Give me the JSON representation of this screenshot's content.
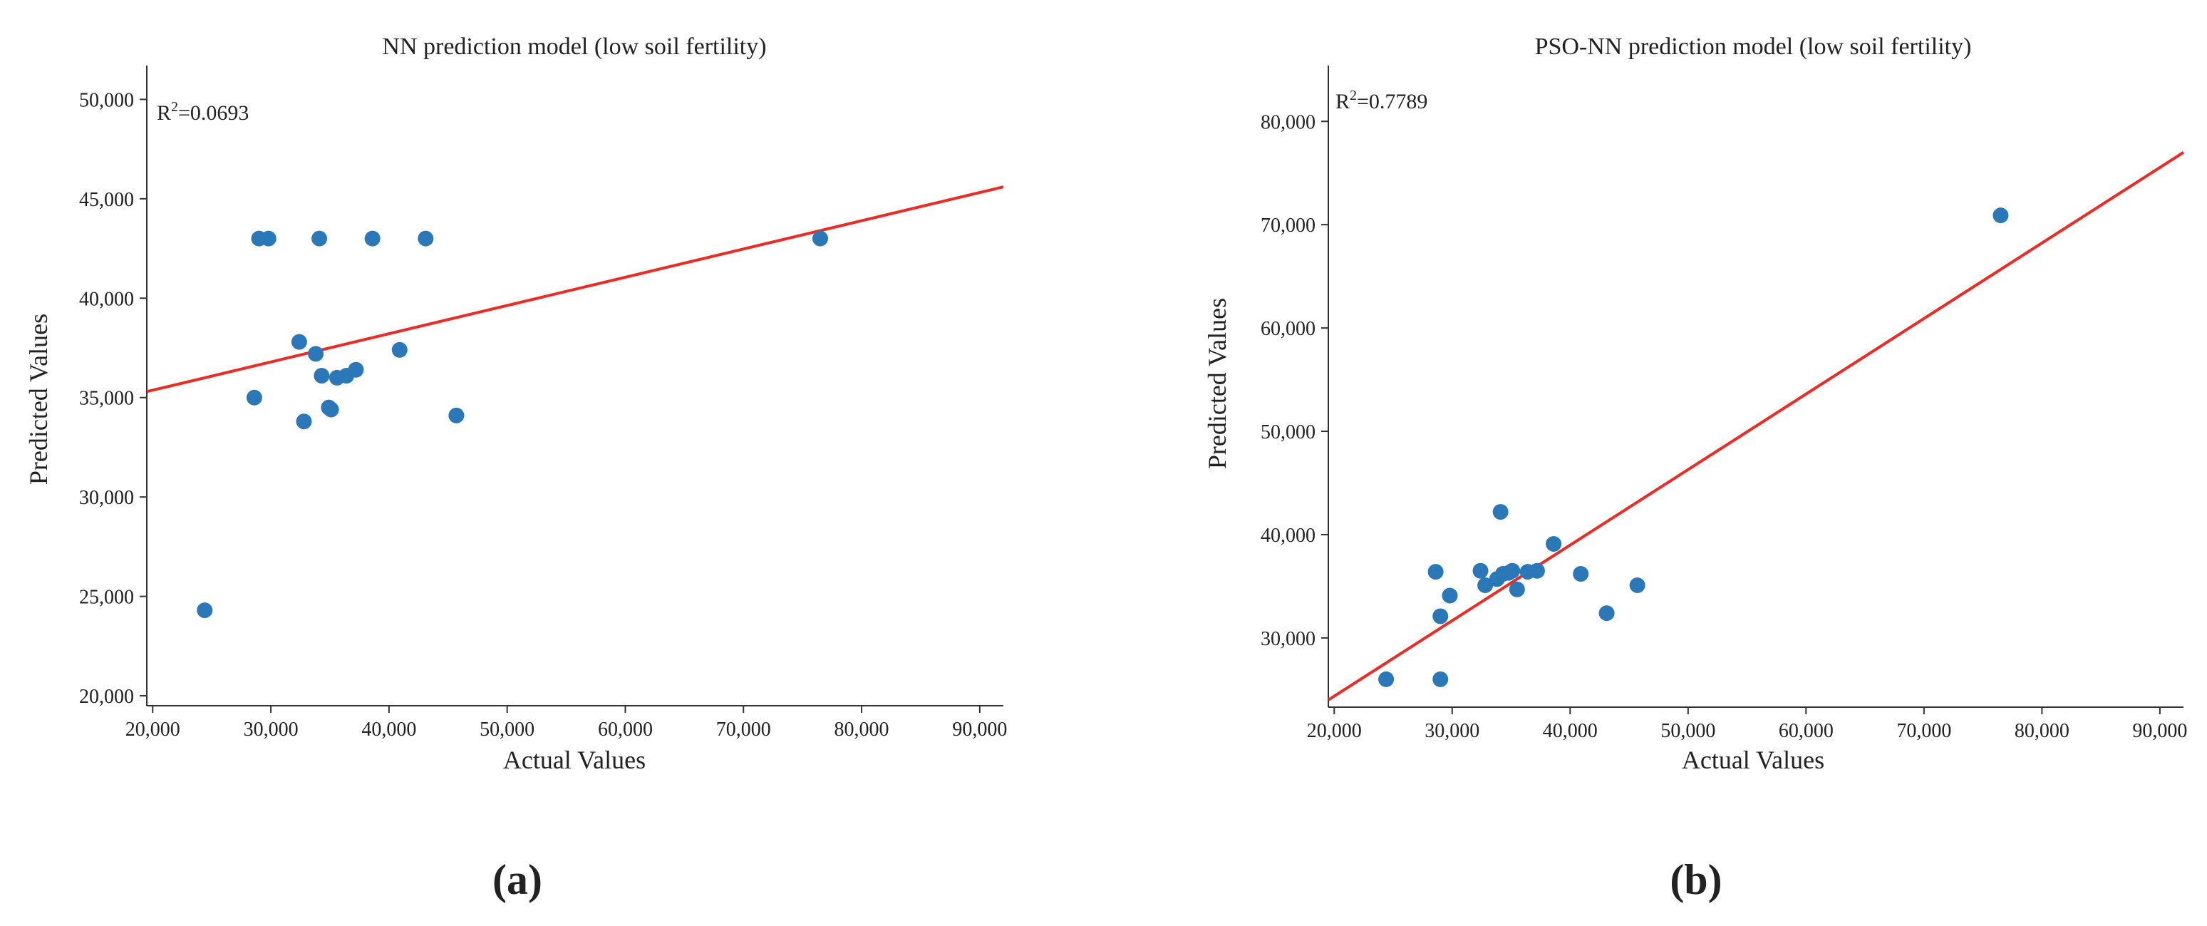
{
  "figure": {
    "panels": [
      {
        "label": "(a)",
        "chart_data": {
          "type": "scatter",
          "title": "NN prediction model (low soil fertility)",
          "xlabel": "Actual Values",
          "ylabel": "Predicted Values",
          "annotation": {
            "prefix": "R",
            "sup": "2",
            "value": "=0.0693"
          },
          "xlim": [
            19500,
            92000
          ],
          "ylim": [
            19500,
            51700
          ],
          "xticks": [
            20000,
            30000,
            40000,
            50000,
            60000,
            70000,
            80000,
            90000
          ],
          "xtick_labels": [
            "20,000",
            "30,000",
            "40,000",
            "50,000",
            "60,000",
            "70,000",
            "80,000",
            "90,000"
          ],
          "yticks": [
            20000,
            25000,
            30000,
            35000,
            40000,
            45000,
            50000
          ],
          "ytick_labels": [
            "20,000",
            "25,000",
            "30,000",
            "35,000",
            "40,000",
            "45,000",
            "50,000"
          ],
          "points": [
            {
              "x": 24400,
              "y": 24300
            },
            {
              "x": 28600,
              "y": 35000
            },
            {
              "x": 29000,
              "y": 43000
            },
            {
              "x": 29800,
              "y": 43000
            },
            {
              "x": 32400,
              "y": 37800
            },
            {
              "x": 32800,
              "y": 33800
            },
            {
              "x": 33800,
              "y": 37200
            },
            {
              "x": 34100,
              "y": 43000
            },
            {
              "x": 34300,
              "y": 36100
            },
            {
              "x": 34900,
              "y": 34500
            },
            {
              "x": 35100,
              "y": 34400
            },
            {
              "x": 35600,
              "y": 36000
            },
            {
              "x": 36400,
              "y": 36100
            },
            {
              "x": 37200,
              "y": 36400
            },
            {
              "x": 38600,
              "y": 43000
            },
            {
              "x": 40900,
              "y": 37400
            },
            {
              "x": 43100,
              "y": 43000
            },
            {
              "x": 45700,
              "y": 34100
            },
            {
              "x": 76500,
              "y": 43000
            }
          ],
          "fit_line": {
            "x": [
              19500,
              92000
            ],
            "y": [
              35300,
              45600
            ]
          },
          "point_color": "#2b78b8",
          "line_color": "#ee2a24"
        }
      },
      {
        "label": "(b)",
        "chart_data": {
          "type": "scatter",
          "title": "PSO-NN prediction model (low soil fertility)",
          "xlabel": "Actual Values",
          "ylabel": "Predicted Values",
          "annotation": {
            "prefix": "R",
            "sup": "2",
            "value": "=0.7789"
          },
          "xlim": [
            19500,
            92000
          ],
          "ylim": [
            23300,
            85400
          ],
          "xticks": [
            20000,
            30000,
            40000,
            50000,
            60000,
            70000,
            80000,
            90000
          ],
          "xtick_labels": [
            "20,000",
            "30,000",
            "40,000",
            "50,000",
            "60,000",
            "70,000",
            "80,000",
            "90,000"
          ],
          "yticks": [
            30000,
            40000,
            50000,
            60000,
            70000,
            80000
          ],
          "ytick_labels": [
            "30,000",
            "40,000",
            "50,000",
            "60,000",
            "70,000",
            "80,000"
          ],
          "points": [
            {
              "x": 24400,
              "y": 26000
            },
            {
              "x": 28600,
              "y": 36400
            },
            {
              "x": 29000,
              "y": 32100
            },
            {
              "x": 29000,
              "y": 26000
            },
            {
              "x": 29800,
              "y": 34100
            },
            {
              "x": 32400,
              "y": 36500
            },
            {
              "x": 32800,
              "y": 35100
            },
            {
              "x": 33800,
              "y": 35700
            },
            {
              "x": 34100,
              "y": 42200
            },
            {
              "x": 34300,
              "y": 36200
            },
            {
              "x": 34800,
              "y": 36300
            },
            {
              "x": 35100,
              "y": 36500
            },
            {
              "x": 35500,
              "y": 34700
            },
            {
              "x": 36400,
              "y": 36400
            },
            {
              "x": 37200,
              "y": 36500
            },
            {
              "x": 38600,
              "y": 39100
            },
            {
              "x": 40900,
              "y": 36200
            },
            {
              "x": 43100,
              "y": 32400
            },
            {
              "x": 45700,
              "y": 35100
            },
            {
              "x": 76500,
              "y": 70900
            }
          ],
          "fit_line": {
            "x": [
              19500,
              92000
            ],
            "y": [
              24000,
              77000
            ]
          },
          "point_color": "#2b78b8",
          "line_color": "#ee2a24"
        }
      }
    ]
  }
}
